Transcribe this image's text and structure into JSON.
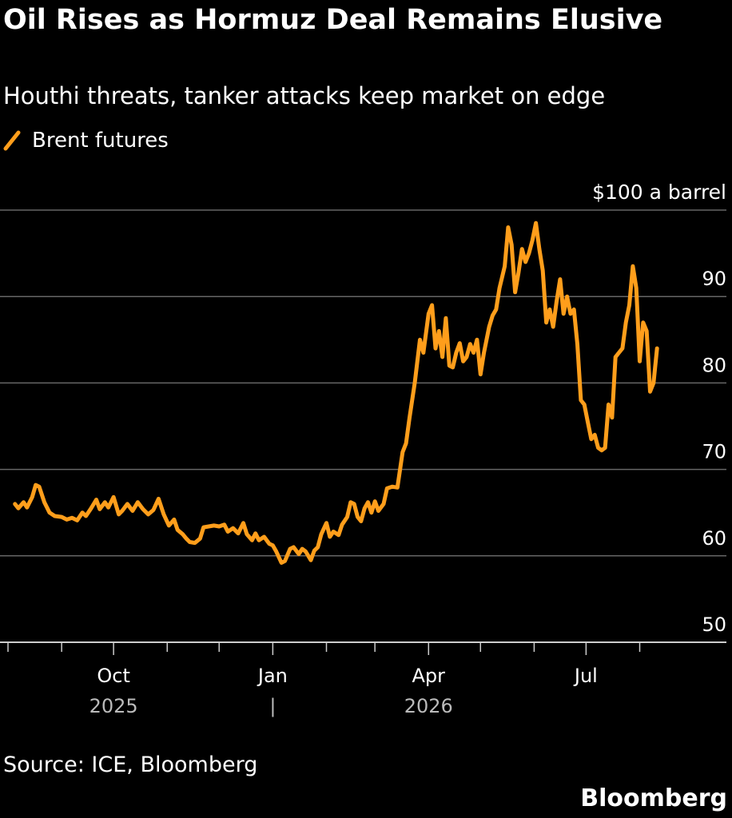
{
  "chart_data": {
    "type": "line",
    "title": "Oil Rises as Hormuz Deal Remains Elusive",
    "subtitle": "Houthi threats, tanker attacks keep market on edge",
    "ylabel": "",
    "unit_label": "$100 a barrel",
    "ylim": [
      50,
      100
    ],
    "y_ticks": [
      {
        "value": 100,
        "label": "$100 a barrel"
      },
      {
        "value": 90,
        "label": "90"
      },
      {
        "value": 80,
        "label": "80"
      },
      {
        "value": 70,
        "label": "70"
      },
      {
        "value": 60,
        "label": "60"
      },
      {
        "value": 50,
        "label": "50"
      }
    ],
    "x_range": [
      "2025-08-01",
      "2026-08-22"
    ],
    "x_ticks": [
      {
        "date": "2025-10-01",
        "label": "Oct"
      },
      {
        "date": "2026-01-01",
        "label": "Jan"
      },
      {
        "date": "2026-04-01",
        "label": "Apr"
      },
      {
        "date": "2026-07-01",
        "label": "Jul"
      }
    ],
    "x_minor_ticks": [
      "2025-08-01",
      "2025-09-01",
      "2025-11-01",
      "2025-12-01",
      "2026-02-01",
      "2026-03-01",
      "2026-05-01",
      "2026-06-01",
      "2026-08-01"
    ],
    "year_labels": [
      {
        "label": "2025",
        "date": "2025-10-01"
      },
      {
        "label": "|",
        "date": "2026-01-01"
      },
      {
        "label": "2026",
        "date": "2026-04-01"
      }
    ],
    "grid": true,
    "legend_position": "top-left",
    "series": [
      {
        "name": "Brent futures",
        "color": "#ff9e1b",
        "points": [
          [
            "2025-08-05",
            66.0
          ],
          [
            "2025-08-07",
            65.5
          ],
          [
            "2025-08-10",
            66.2
          ],
          [
            "2025-08-12",
            65.6
          ],
          [
            "2025-08-15",
            66.8
          ],
          [
            "2025-08-17",
            68.2
          ],
          [
            "2025-08-19",
            68.0
          ],
          [
            "2025-08-22",
            66.2
          ],
          [
            "2025-08-25",
            65.0
          ],
          [
            "2025-08-28",
            64.6
          ],
          [
            "2025-09-01",
            64.5
          ],
          [
            "2025-09-04",
            64.2
          ],
          [
            "2025-09-07",
            64.4
          ],
          [
            "2025-09-10",
            64.1
          ],
          [
            "2025-09-13",
            65.0
          ],
          [
            "2025-09-15",
            64.6
          ],
          [
            "2025-09-18",
            65.5
          ],
          [
            "2025-09-21",
            66.5
          ],
          [
            "2025-09-23",
            65.4
          ],
          [
            "2025-09-26",
            66.2
          ],
          [
            "2025-09-28",
            65.6
          ],
          [
            "2025-10-01",
            66.8
          ],
          [
            "2025-10-04",
            64.8
          ],
          [
            "2025-10-06",
            65.2
          ],
          [
            "2025-10-09",
            66.0
          ],
          [
            "2025-10-12",
            65.2
          ],
          [
            "2025-10-15",
            66.2
          ],
          [
            "2025-10-18",
            65.4
          ],
          [
            "2025-10-21",
            64.8
          ],
          [
            "2025-10-24",
            65.3
          ],
          [
            "2025-10-27",
            66.6
          ],
          [
            "2025-10-30",
            64.8
          ],
          [
            "2025-11-02",
            63.5
          ],
          [
            "2025-11-05",
            64.2
          ],
          [
            "2025-11-07",
            63.0
          ],
          [
            "2025-11-10",
            62.5
          ],
          [
            "2025-11-12",
            62.0
          ],
          [
            "2025-11-14",
            61.6
          ],
          [
            "2025-11-17",
            61.5
          ],
          [
            "2025-11-20",
            62.0
          ],
          [
            "2025-11-22",
            63.3
          ],
          [
            "2025-11-25",
            63.4
          ],
          [
            "2025-11-28",
            63.5
          ],
          [
            "2025-12-01",
            63.4
          ],
          [
            "2025-12-04",
            63.6
          ],
          [
            "2025-12-06",
            62.8
          ],
          [
            "2025-12-09",
            63.2
          ],
          [
            "2025-12-12",
            62.6
          ],
          [
            "2025-12-15",
            63.8
          ],
          [
            "2025-12-17",
            62.5
          ],
          [
            "2025-12-20",
            61.8
          ],
          [
            "2025-12-22",
            62.6
          ],
          [
            "2025-12-24",
            61.8
          ],
          [
            "2025-12-27",
            62.2
          ],
          [
            "2025-12-30",
            61.4
          ],
          [
            "2026-01-01",
            61.2
          ],
          [
            "2026-01-03",
            60.5
          ],
          [
            "2026-01-06",
            59.2
          ],
          [
            "2026-01-08",
            59.4
          ],
          [
            "2026-01-11",
            60.8
          ],
          [
            "2026-01-13",
            61.0
          ],
          [
            "2026-01-16",
            60.2
          ],
          [
            "2026-01-18",
            60.8
          ],
          [
            "2026-01-20",
            60.5
          ],
          [
            "2026-01-23",
            59.5
          ],
          [
            "2026-01-25",
            60.6
          ],
          [
            "2026-01-27",
            61.0
          ],
          [
            "2026-01-29",
            62.5
          ],
          [
            "2026-02-01",
            63.8
          ],
          [
            "2026-02-03",
            62.2
          ],
          [
            "2026-02-05",
            62.8
          ],
          [
            "2026-02-08",
            62.4
          ],
          [
            "2026-02-10",
            63.6
          ],
          [
            "2026-02-13",
            64.5
          ],
          [
            "2026-02-15",
            66.2
          ],
          [
            "2026-02-17",
            66.0
          ],
          [
            "2026-02-19",
            64.5
          ],
          [
            "2026-02-21",
            64.0
          ],
          [
            "2026-02-23",
            65.5
          ],
          [
            "2026-02-25",
            66.2
          ],
          [
            "2026-02-27",
            65.0
          ],
          [
            "2026-03-01",
            66.3
          ],
          [
            "2026-03-03",
            65.2
          ],
          [
            "2026-03-06",
            66.0
          ],
          [
            "2026-03-08",
            67.8
          ],
          [
            "2026-03-11",
            68.0
          ],
          [
            "2026-03-14",
            67.9
          ],
          [
            "2026-03-17",
            72.0
          ],
          [
            "2026-03-19",
            73.0
          ],
          [
            "2026-03-21",
            76.0
          ],
          [
            "2026-03-24",
            80.0
          ],
          [
            "2026-03-27",
            85.0
          ],
          [
            "2026-03-29",
            83.5
          ],
          [
            "2026-04-01",
            88.0
          ],
          [
            "2026-04-03",
            89.0
          ],
          [
            "2026-04-05",
            84.0
          ],
          [
            "2026-04-07",
            86.0
          ],
          [
            "2026-04-09",
            83.0
          ],
          [
            "2026-04-11",
            87.5
          ],
          [
            "2026-04-13",
            82.0
          ],
          [
            "2026-04-15",
            81.8
          ],
          [
            "2026-04-17",
            83.5
          ],
          [
            "2026-04-19",
            84.6
          ],
          [
            "2026-04-21",
            82.5
          ],
          [
            "2026-04-23",
            83.0
          ],
          [
            "2026-04-25",
            84.5
          ],
          [
            "2026-04-27",
            83.5
          ],
          [
            "2026-04-29",
            85.0
          ],
          [
            "2026-05-01",
            81.0
          ],
          [
            "2026-05-03",
            83.5
          ],
          [
            "2026-05-06",
            86.5
          ],
          [
            "2026-05-08",
            87.8
          ],
          [
            "2026-05-10",
            88.5
          ],
          [
            "2026-05-12",
            91.0
          ],
          [
            "2026-05-15",
            93.5
          ],
          [
            "2026-05-17",
            98.0
          ],
          [
            "2026-05-19",
            96.0
          ],
          [
            "2026-05-21",
            90.5
          ],
          [
            "2026-05-23",
            92.8
          ],
          [
            "2026-05-25",
            95.5
          ],
          [
            "2026-05-27",
            94.0
          ],
          [
            "2026-05-29",
            95.0
          ],
          [
            "2026-05-31",
            96.5
          ],
          [
            "2026-06-02",
            98.5
          ],
          [
            "2026-06-04",
            95.5
          ],
          [
            "2026-06-06",
            93.0
          ],
          [
            "2026-06-08",
            87.0
          ],
          [
            "2026-06-10",
            88.5
          ],
          [
            "2026-06-12",
            86.5
          ],
          [
            "2026-06-14",
            89.5
          ],
          [
            "2026-06-16",
            92.0
          ],
          [
            "2026-06-18",
            88.0
          ],
          [
            "2026-06-20",
            90.0
          ],
          [
            "2026-06-22",
            88.0
          ],
          [
            "2026-06-24",
            88.5
          ],
          [
            "2026-06-26",
            84.5
          ],
          [
            "2026-06-28",
            78.0
          ],
          [
            "2026-06-30",
            77.5
          ],
          [
            "2026-07-02",
            75.5
          ],
          [
            "2026-07-04",
            73.5
          ],
          [
            "2026-07-06",
            74.0
          ],
          [
            "2026-07-08",
            72.5
          ],
          [
            "2026-07-10",
            72.2
          ],
          [
            "2026-07-12",
            72.5
          ],
          [
            "2026-07-14",
            77.5
          ],
          [
            "2026-07-16",
            76.0
          ],
          [
            "2026-07-18",
            83.0
          ],
          [
            "2026-07-20",
            83.5
          ],
          [
            "2026-07-22",
            84.0
          ],
          [
            "2026-07-24",
            87.0
          ],
          [
            "2026-07-26",
            89.0
          ],
          [
            "2026-07-28",
            93.5
          ],
          [
            "2026-07-30",
            91.0
          ],
          [
            "2026-08-01",
            82.5
          ],
          [
            "2026-08-03",
            87.0
          ],
          [
            "2026-08-05",
            86.0
          ],
          [
            "2026-08-07",
            79.0
          ],
          [
            "2026-08-09",
            80.0
          ],
          [
            "2026-08-11",
            84.0
          ]
        ]
      }
    ]
  },
  "source": "Source: ICE, Bloomberg",
  "brand": "Bloomberg",
  "colors": {
    "background": "#000000",
    "line": "#ff9e1b",
    "grid": "#666666",
    "text": "#ffffff"
  }
}
